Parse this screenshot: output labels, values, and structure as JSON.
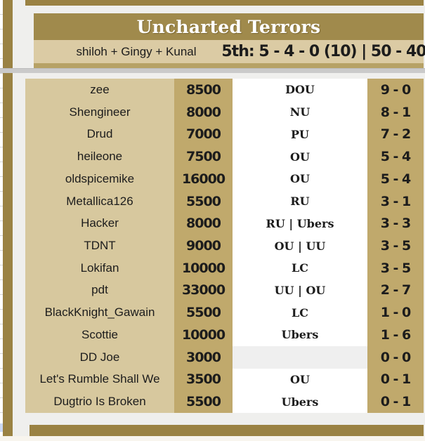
{
  "header": {
    "title": "Uncharted Terrors",
    "managers": "shiloh + Gingy + Kunal",
    "standing": "5th: 5 - 4 - 0 (10) | 50 - 40"
  },
  "roster": {
    "rows": [
      {
        "name": "zee",
        "price": "8500",
        "tier": "DOU",
        "record": "9 - 0"
      },
      {
        "name": "Shengineer",
        "price": "8000",
        "tier": "NU",
        "record": "8 - 1"
      },
      {
        "name": "Drud",
        "price": "7000",
        "tier": "PU",
        "record": "7 - 2"
      },
      {
        "name": "heileone",
        "price": "7500",
        "tier": "OU",
        "record": "5 - 4"
      },
      {
        "name": "oldspicemike",
        "price": "16000",
        "tier": "OU",
        "record": "5 - 4"
      },
      {
        "name": "Metallica126",
        "price": "5500",
        "tier": "RU",
        "record": "3 - 1"
      },
      {
        "name": "Hacker",
        "price": "8000",
        "tier": "RU | Ubers",
        "record": "3 - 3"
      },
      {
        "name": "TDNT",
        "price": "9000",
        "tier": "OU | UU",
        "record": "3 - 5"
      },
      {
        "name": "Lokifan",
        "price": "10000",
        "tier": "LC",
        "record": "3 - 5"
      },
      {
        "name": "pdt",
        "price": "33000",
        "tier": "UU | OU",
        "record": "2 - 7"
      },
      {
        "name": "BlackKnight_Gawain",
        "price": "5500",
        "tier": "LC",
        "record": "1 - 0"
      },
      {
        "name": "Scottie",
        "price": "10000",
        "tier": "Ubers",
        "record": "1 - 6"
      },
      {
        "name": "DD Joe",
        "price": "3000",
        "tier": "",
        "record": "0 - 0"
      },
      {
        "name": "Let's Rumble Shall We",
        "price": "3500",
        "tier": "OU",
        "record": "0 - 1"
      },
      {
        "name": "Dugtrio Is Broken",
        "price": "5500",
        "tier": "Ubers",
        "record": "0 - 1"
      }
    ]
  },
  "colors": {
    "gold-dark": "#9a8243",
    "gold-header": "#a08a4c",
    "gold-strip": "#b7a266",
    "gold-cell": "#c0a96c",
    "tan-cell": "#d7c89e",
    "tan-subheader": "#dbcba4",
    "page-bg": "#efefed",
    "divider": "#cacaca",
    "tier-bg": "#ffffff",
    "tier-empty-bg": "#efefef",
    "selected-cell": "#cbd8f3",
    "text": "#1c1c1c",
    "title-text": "#ffffff",
    "bottom-cream": "#f8f5ee",
    "gridline": "#d5d5d5"
  }
}
